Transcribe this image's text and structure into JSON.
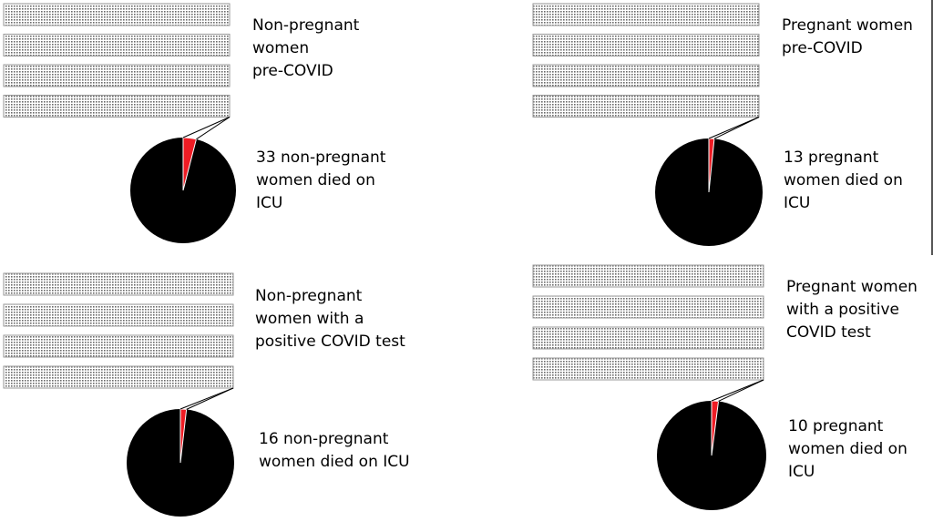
{
  "chart_data": [
    {
      "type": "pie",
      "group_label": "Non-pregnant women pre-COVID",
      "caption": "33 non-pregnant women died on ICU",
      "slice_count": 33,
      "slice_fraction": 0.04,
      "colors": {
        "slice": "#ee1c24",
        "rest": "#000000",
        "bars": "dotted-grey"
      }
    },
    {
      "type": "pie",
      "group_label": "Pregnant women pre-COVID",
      "caption": "13 pregnant women died on ICU",
      "slice_count": 13,
      "slice_fraction": 0.016,
      "colors": {
        "slice": "#ee1c24",
        "rest": "#000000",
        "bars": "dotted-grey"
      }
    },
    {
      "type": "pie",
      "group_label": "Non-pregnant women with a positive COVID test",
      "caption": "16 non-pregnant women died on ICU",
      "slice_count": 16,
      "slice_fraction": 0.018,
      "colors": {
        "slice": "#ee1c24",
        "rest": "#000000",
        "bars": "dotted-grey"
      }
    },
    {
      "type": "pie",
      "group_label": "Pregnant women with a positive COVID test",
      "caption": "10 pregnant women died on ICU",
      "slice_count": 10,
      "slice_fraction": 0.02,
      "colors": {
        "slice": "#ee1c24",
        "rest": "#000000",
        "bars": "dotted-grey"
      }
    }
  ],
  "panels": [
    {
      "label_lines": [
        "Non-pregnant",
        "women",
        "pre-COVID"
      ],
      "caption_lines": [
        "33 non-pregnant",
        "women died on",
        "ICU"
      ]
    },
    {
      "label_lines": [
        "Pregnant women",
        "pre-COVID"
      ],
      "caption_lines": [
        "13 pregnant",
        "women died on",
        "ICU"
      ]
    },
    {
      "label_lines": [
        "Non-pregnant",
        "women with a",
        "positive COVID test"
      ],
      "caption_lines": [
        "16 non-pregnant",
        "women died on ICU"
      ]
    },
    {
      "label_lines": [
        "Pregnant women",
        "with a positive",
        "COVID test"
      ],
      "caption_lines": [
        "10 pregnant",
        "women died on",
        "ICU"
      ]
    }
  ]
}
